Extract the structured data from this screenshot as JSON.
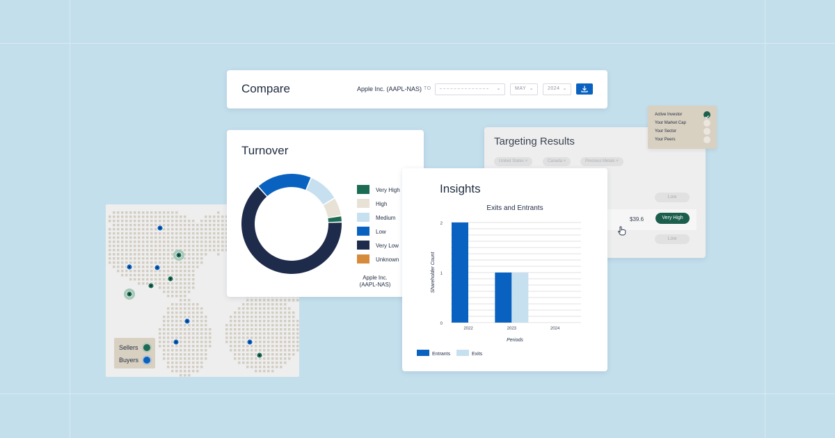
{
  "compare": {
    "title": "Compare",
    "company": "Apple Inc. (AAPL-NAS)",
    "to_label": "TO",
    "month": "MAY",
    "year": "2024"
  },
  "turnover": {
    "title": "Turnover",
    "company_line1": "Apple Inc.",
    "company_line2": "(AAPL-NAS)",
    "legend": [
      {
        "label": "Very High",
        "color": "#1c6b53"
      },
      {
        "label": "High",
        "color": "#e8e2d6"
      },
      {
        "label": "Medium",
        "color": "#c7e0ef"
      },
      {
        "label": "Low",
        "color": "#0a62c0"
      },
      {
        "label": "Very Low",
        "color": "#1e2b4a"
      },
      {
        "label": "Unknown",
        "color": "#d68a3c"
      }
    ],
    "donut_segments": [
      {
        "label": "Very High",
        "share": 0.02
      },
      {
        "label": "High",
        "share": 0.06
      },
      {
        "label": "Medium",
        "share": 0.1
      },
      {
        "label": "Low",
        "share": 0.18
      },
      {
        "label": "Very Low",
        "share": 0.64
      }
    ]
  },
  "map": {
    "legend": [
      {
        "label": "Sellers",
        "color": "#1c6b53"
      },
      {
        "label": "Buyers",
        "color": "#0a62c0"
      }
    ]
  },
  "targeting": {
    "title": "Targeting Results",
    "chips": [
      "United States ×",
      "Canada ×",
      "Precious Metals ×"
    ],
    "low_label": "Low",
    "value": "$39.6",
    "very_high_label": "Very High"
  },
  "filters": {
    "items": [
      {
        "label": "Active Investor",
        "checked": true
      },
      {
        "label": "Your Market Cap",
        "checked": false
      },
      {
        "label": "Your Sector",
        "checked": false
      },
      {
        "label": "Your Peers",
        "checked": false
      }
    ]
  },
  "insights": {
    "title": "Insights"
  },
  "chart_data": {
    "type": "bar",
    "title": "Exits and Entrants",
    "xlabel": "Periods",
    "ylabel": "Shareholder Count",
    "categories": [
      "2022",
      "2023",
      "2024"
    ],
    "series": [
      {
        "name": "Entrants",
        "values": [
          2,
          1,
          0
        ],
        "color": "#0a62c0"
      },
      {
        "name": "Exits",
        "values": [
          0,
          1,
          0
        ],
        "color": "#c7e0ef"
      }
    ],
    "ylim": [
      0,
      2
    ],
    "yticks": [
      "0",
      "1",
      "2"
    ],
    "grid": true,
    "legend_position": "bottom-left"
  }
}
